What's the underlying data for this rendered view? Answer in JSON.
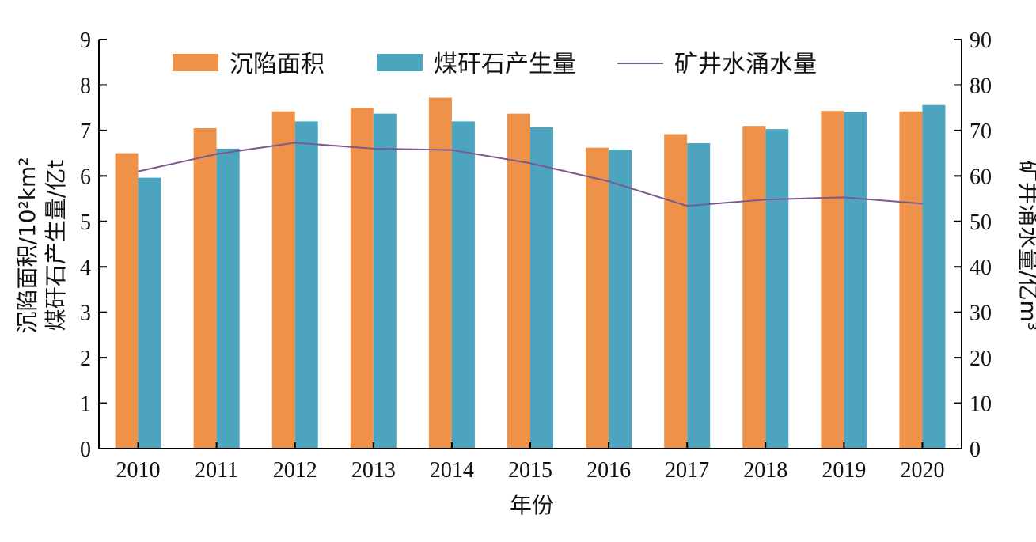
{
  "chart_data": {
    "type": "bar",
    "categories": [
      "2010",
      "2011",
      "2012",
      "2013",
      "2014",
      "2015",
      "2016",
      "2017",
      "2018",
      "2019",
      "2020"
    ],
    "series": [
      {
        "name": "沉陷面积",
        "type": "bar",
        "axis": "left",
        "color": "#EE924A",
        "values": [
          6.5,
          7.05,
          7.42,
          7.5,
          7.72,
          7.37,
          6.62,
          6.92,
          7.1,
          7.43,
          7.42
        ]
      },
      {
        "name": "煤矸石产生量",
        "type": "bar",
        "axis": "left",
        "color": "#4CA4BE",
        "values": [
          5.96,
          6.6,
          7.2,
          7.37,
          7.2,
          7.07,
          6.58,
          6.72,
          7.03,
          7.41,
          7.56
        ]
      },
      {
        "name": "矿井水涌水量",
        "type": "line",
        "axis": "right",
        "color": "#7A5A8E",
        "values": [
          61.0,
          64.8,
          67.3,
          66.0,
          65.7,
          62.8,
          58.8,
          53.4,
          54.8,
          55.3,
          53.9
        ]
      }
    ],
    "xlabel": "年份",
    "ylabel_left_line1": "沉陷面积/10²km²",
    "ylabel_left_line2": "煤矸石产生量/亿t",
    "ylabel_right": "矿井涌水量/亿m³",
    "ylim_left": [
      0,
      9
    ],
    "ylim_right": [
      0,
      90
    ],
    "yticks_left": [
      "0",
      "1",
      "2",
      "3",
      "4",
      "5",
      "6",
      "7",
      "8",
      "9"
    ],
    "yticks_right": [
      "0",
      "10",
      "20",
      "30",
      "40",
      "50",
      "60",
      "70",
      "80",
      "90"
    ],
    "grid": false,
    "legend_position": "top"
  }
}
